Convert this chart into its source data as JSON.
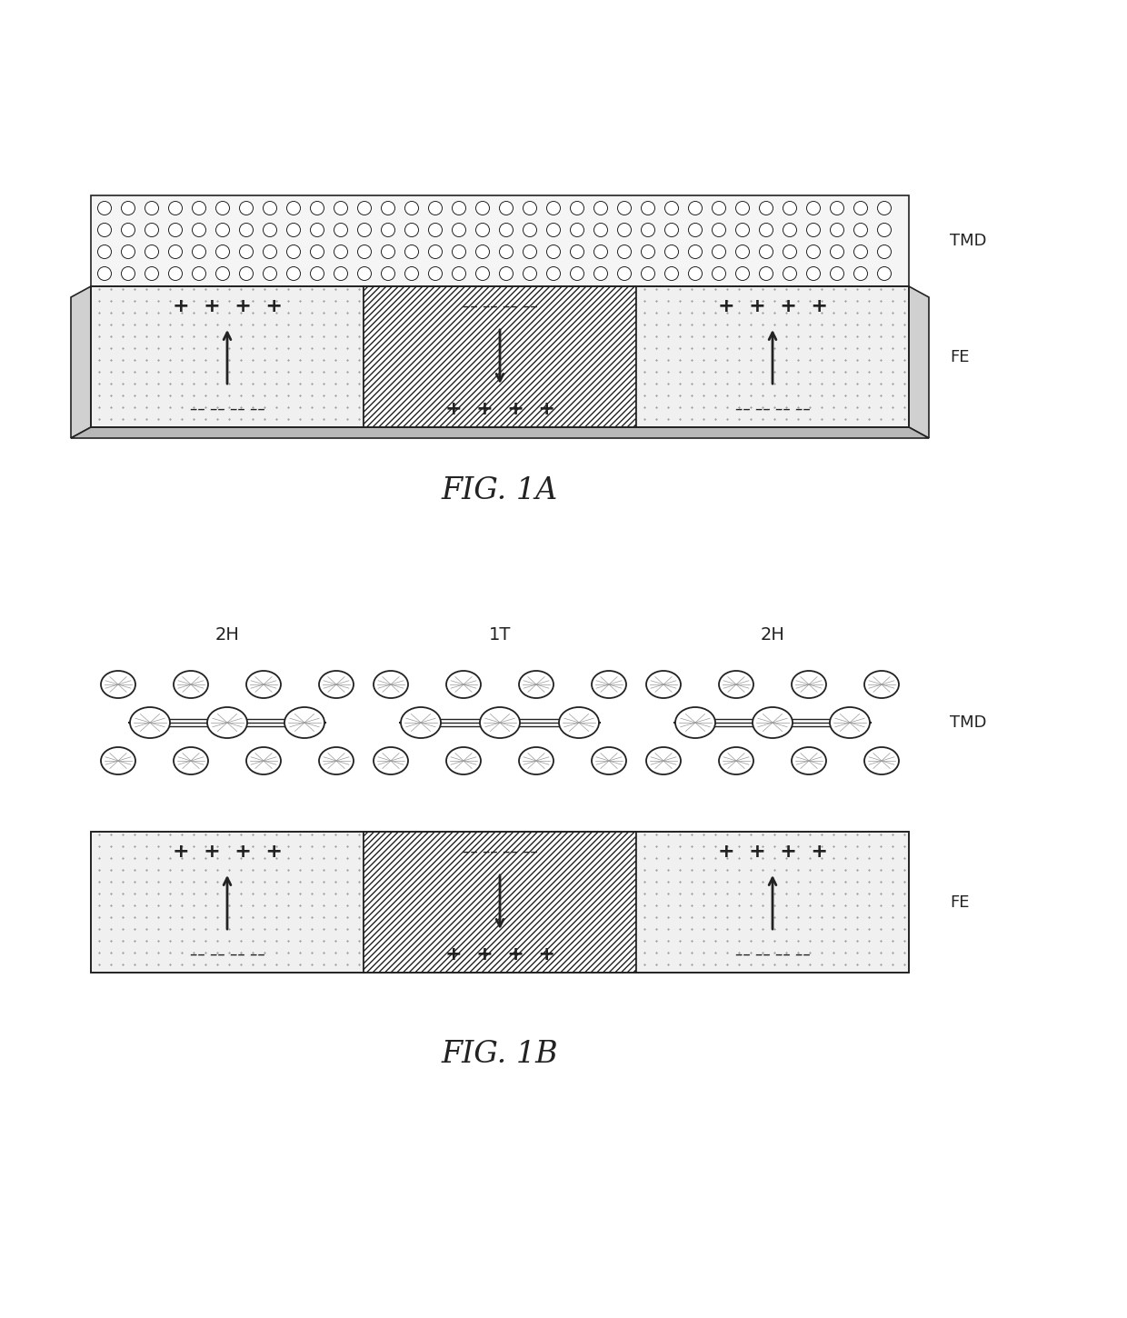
{
  "fig_width": 12.4,
  "fig_height": 14.5,
  "bg_color": "#ffffff",
  "line_color": "#222222",
  "label_TMD": "TMD",
  "label_FE": "FE",
  "label_2H_left": "2H",
  "label_1T": "1T",
  "label_2H_right": "2H",
  "fig1a_label": "FIG. 1A",
  "fig1b_label": "FIG. 1B"
}
